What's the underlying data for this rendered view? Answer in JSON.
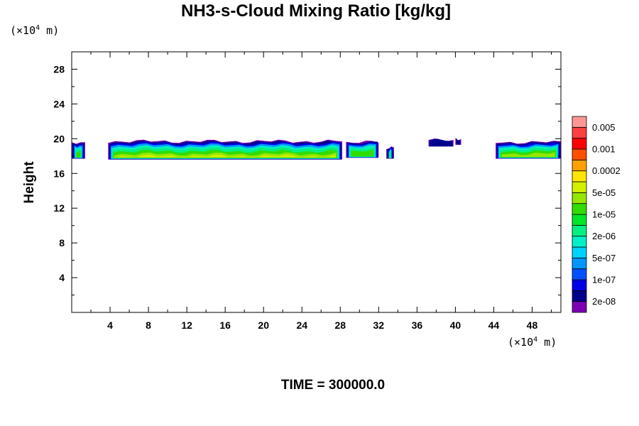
{
  "chart_data": {
    "type": "heatmap",
    "title": "NH3-s-Cloud Mixing Ratio [kg/kg]",
    "ylabel": "Height",
    "y_unit": {
      "prefix": "(×10",
      "exp": "4",
      "suffix": " m)"
    },
    "x_unit": {
      "prefix": "(×10",
      "exp": "4",
      "suffix": " m)"
    },
    "xlim": [
      0,
      51
    ],
    "ylim": [
      0,
      30
    ],
    "x_ticks": [
      4,
      8,
      12,
      16,
      20,
      24,
      28,
      32,
      36,
      40,
      44,
      48
    ],
    "y_ticks": [
      4,
      8,
      12,
      16,
      20,
      24,
      28
    ],
    "footer": "TIME = 300000.0",
    "colorbar": {
      "colors": [
        "#7b00b4",
        "#00008c",
        "#0000e6",
        "#0050ff",
        "#0096ff",
        "#00d2ff",
        "#00f0c8",
        "#00f082",
        "#00e628",
        "#32dc00",
        "#96e600",
        "#d2f000",
        "#ffe600",
        "#ffa000",
        "#ff5000",
        "#ff0000",
        "#ff4040",
        "#ff9696"
      ],
      "labels": [
        "2e-08",
        "1e-07",
        "5e-07",
        "2e-06",
        "1e-05",
        "5e-05",
        "0.0002",
        "0.001",
        "0.005"
      ]
    },
    "cloud_segments": [
      {
        "x0": 0.0,
        "x1": 1.4,
        "top": 19.6,
        "bottom": 17.7,
        "core": 0.6
      },
      {
        "x0": 3.8,
        "x1": 28.2,
        "top": 19.7,
        "bottom": 17.6,
        "core": 1.0
      },
      {
        "x0": 28.6,
        "x1": 32.0,
        "top": 19.6,
        "bottom": 17.8,
        "core": 0.6
      },
      {
        "x0": 32.8,
        "x1": 33.6,
        "top": 18.9,
        "bottom": 17.7,
        "core": 0.4
      },
      {
        "x0": 37.2,
        "x1": 39.8,
        "top": 19.8,
        "bottom": 19.1,
        "core": 0.1
      },
      {
        "x0": 40.0,
        "x1": 40.6,
        "top": 19.9,
        "bottom": 19.3,
        "core": 0.1
      },
      {
        "x0": 44.2,
        "x1": 51.0,
        "top": 19.6,
        "bottom": 17.7,
        "core": 0.7
      }
    ]
  }
}
